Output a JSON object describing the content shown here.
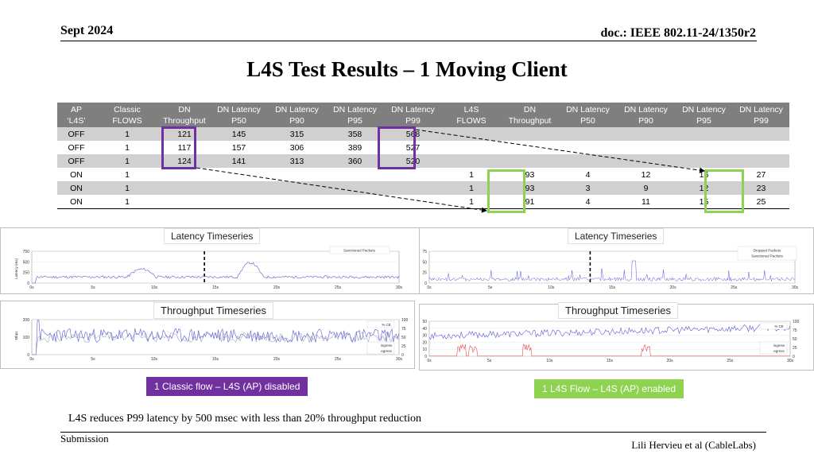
{
  "header": {
    "date": "Sept 2024",
    "doc": "doc.: IEEE 802.11-24/1350r2"
  },
  "title": "L4S Test Results – 1 Moving Client",
  "table": {
    "headers": [
      [
        "AP",
        "‘L4S’"
      ],
      [
        "Classic",
        "FLOWS"
      ],
      [
        "DN",
        "Throughput"
      ],
      [
        "DN Latency",
        "P50"
      ],
      [
        "DN Latency",
        "P90"
      ],
      [
        "DN Latency",
        "P95"
      ],
      [
        "DN Latency",
        "P99"
      ],
      [
        "L4S",
        "FLOWS"
      ],
      [
        "DN",
        "Throughput"
      ],
      [
        "DN Latency",
        "P50"
      ],
      [
        "DN Latency",
        "P90"
      ],
      [
        "DN Latency",
        "P95"
      ],
      [
        "DN Latency",
        "P99"
      ]
    ],
    "rows": [
      [
        "OFF",
        "1",
        "121",
        "145",
        "315",
        "358",
        "568",
        "",
        "",
        "",
        "",
        "",
        ""
      ],
      [
        "OFF",
        "1",
        "117",
        "157",
        "306",
        "389",
        "527",
        "",
        "",
        "",
        "",
        "",
        ""
      ],
      [
        "OFF",
        "1",
        "124",
        "141",
        "313",
        "360",
        "520",
        "",
        "",
        "",
        "",
        "",
        ""
      ],
      [
        "ON",
        "1",
        "",
        "",
        "",
        "",
        "",
        "1",
        "93",
        "4",
        "12",
        "16",
        "27"
      ],
      [
        "ON",
        "1",
        "",
        "",
        "",
        "",
        "",
        "1",
        "93",
        "3",
        "9",
        "12",
        "23"
      ],
      [
        "ON",
        "1",
        "",
        "",
        "",
        "",
        "",
        "1",
        "91",
        "4",
        "11",
        "15",
        "25"
      ]
    ]
  },
  "charts": {
    "left": {
      "latency": {
        "title": "Latency Timeseries",
        "legend": "Sanctioned Packets",
        "ylabel": "Latency (ms)",
        "yticks": [
          "750",
          "500",
          "250",
          "0"
        ]
      },
      "throughput": {
        "title": "Throughput Timeseries",
        "legend": [
          "% CE",
          "ingress",
          "egress"
        ],
        "ylabel": "Mbps",
        "yticks": [
          "200",
          "100",
          "0"
        ],
        "y2ticks": [
          "100",
          "75",
          "50",
          "25",
          "0"
        ]
      },
      "xticks": [
        "0s",
        "5s",
        "10s",
        "15s",
        "20s",
        "25s",
        "30s"
      ],
      "caption": "1 Classic flow – L4S (AP) disabled"
    },
    "right": {
      "latency": {
        "title": "Latency Timeseries",
        "legend": [
          "Dropped Packets",
          "Sanctioned Packets"
        ],
        "yticks": [
          "75",
          "50",
          "25",
          "0"
        ]
      },
      "throughput": {
        "title": "Throughput Timeseries",
        "legend": [
          "% CE",
          "ingress",
          "egress"
        ],
        "yticks": [
          "50",
          "40",
          "30",
          "20",
          "10",
          "0"
        ],
        "y2ticks": [
          "100",
          "75",
          "50",
          "25",
          "0"
        ]
      },
      "xticks": [
        "0s",
        "5s",
        "10s",
        "15s",
        "20s",
        "25s",
        "30s"
      ],
      "caption": "1 L4S Flow – L4S (AP) enabled"
    }
  },
  "summary": "L4S reduces P99 latency by 500 msec with less than  20% throughput reduction",
  "footer": {
    "left": "Submission",
    "right": "Lili Hervieu et al (CableLabs)"
  },
  "colors": {
    "purple": "#7030a0",
    "green": "#8dd350",
    "trace": "#5a5ad8",
    "ce": "#e05050"
  }
}
